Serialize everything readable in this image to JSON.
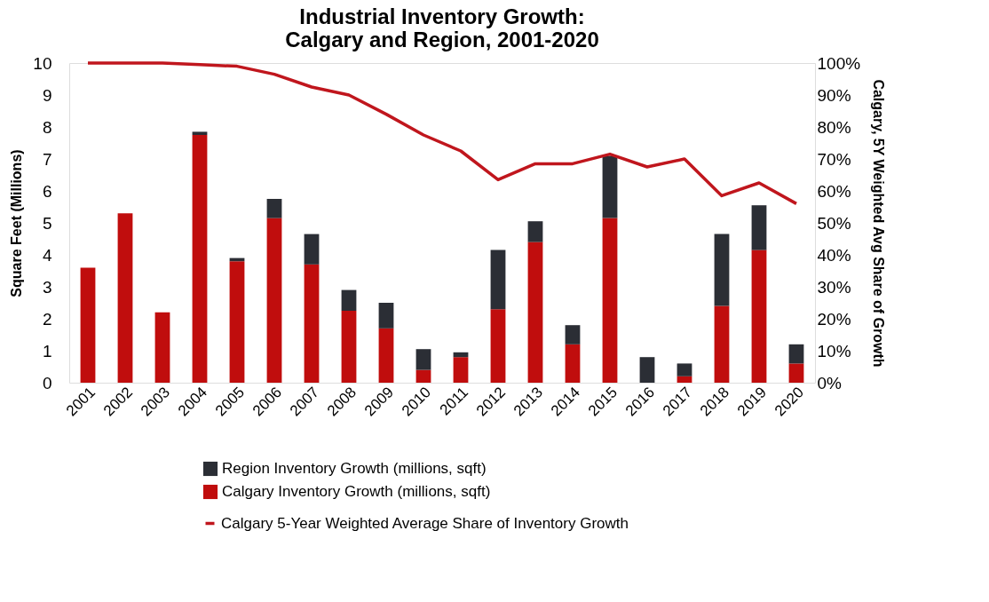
{
  "chart_data": {
    "type": "bar",
    "title": "Industrial Inventory Growth:\nCalgary and Region, 2001-2020",
    "categories": [
      "2001",
      "2002",
      "2003",
      "2004",
      "2005",
      "2006",
      "2007",
      "2008",
      "2009",
      "2010",
      "2011",
      "2012",
      "2013",
      "2014",
      "2015",
      "2016",
      "2017",
      "2018",
      "2019",
      "2020"
    ],
    "stacked": true,
    "ylabel": "Square Feet (Millions)",
    "y2label": "Calgary, 5Y Weighted Avg Share of Growth",
    "ylim": [
      0,
      10
    ],
    "yticks": [
      0,
      1,
      2,
      3,
      4,
      5,
      6,
      7,
      8,
      9,
      10
    ],
    "y2lim": [
      0,
      100
    ],
    "y2ticks": [
      {
        "value": 0,
        "label": "0%"
      },
      {
        "value": 10,
        "label": "10%"
      },
      {
        "value": 20,
        "label": "20%"
      },
      {
        "value": 30,
        "label": "30%"
      },
      {
        "value": 40,
        "label": "40%"
      },
      {
        "value": 50,
        "label": "50%"
      },
      {
        "value": 60,
        "label": "60%"
      },
      {
        "value": 70,
        "label": "70%"
      },
      {
        "value": 80,
        "label": "80%"
      },
      {
        "value": 90,
        "label": "90%"
      },
      {
        "value": 100,
        "label": "100%"
      }
    ],
    "series": [
      {
        "name": "Calgary Inventory Growth (millions, sqft)",
        "color": "#c00d0d",
        "values": [
          3.6,
          5.3,
          2.2,
          7.75,
          3.8,
          5.15,
          3.7,
          2.25,
          1.7,
          0.4,
          0.8,
          2.3,
          4.4,
          1.2,
          5.15,
          0,
          0.2,
          2.4,
          4.15,
          0.6
        ]
      },
      {
        "name": "Region Inventory Growth (millions, sqft)",
        "color": "#2b2e35",
        "values": [
          0,
          0,
          0,
          0.1,
          0.1,
          0.6,
          0.95,
          0.65,
          0.8,
          0.65,
          0.15,
          1.85,
          0.65,
          0.6,
          1.95,
          0.8,
          0.4,
          2.25,
          1.4,
          0.6
        ]
      },
      {
        "name": "Calgary 5-Year Weighted Average Share of Inventory Growth",
        "color": "#c0161d",
        "type": "line",
        "axis": "y2",
        "values": [
          100,
          100,
          100,
          99.5,
          99,
          96.5,
          92.5,
          90,
          84,
          77.5,
          72.5,
          63.5,
          68.5,
          68.5,
          71.5,
          67.5,
          70,
          58.5,
          62.5,
          56
        ]
      }
    ],
    "legend": "bottom",
    "grid": false
  }
}
